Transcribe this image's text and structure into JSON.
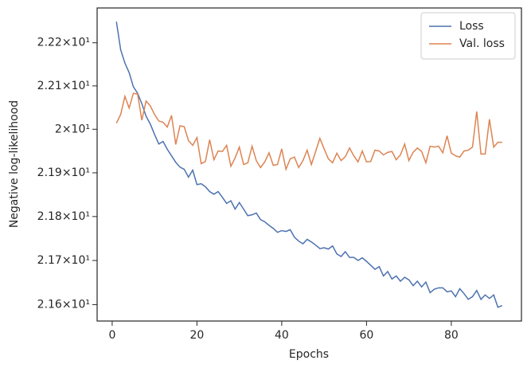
{
  "chart_data": {
    "type": "line",
    "xlabel": "Epochs",
    "ylabel": "Negative log-likelihood",
    "x": [
      1,
      2,
      3,
      4,
      5,
      6,
      7,
      8,
      9,
      10,
      11,
      12,
      13,
      14,
      15,
      16,
      17,
      18,
      19,
      20,
      21,
      22,
      23,
      24,
      25,
      26,
      27,
      28,
      29,
      30,
      31,
      32,
      33,
      34,
      35,
      36,
      37,
      38,
      39,
      40,
      41,
      42,
      43,
      44,
      45,
      46,
      47,
      48,
      49,
      50,
      51,
      52,
      53,
      54,
      55,
      56,
      57,
      58,
      59,
      60,
      61,
      62,
      63,
      64,
      65,
      66,
      67,
      68,
      69,
      70,
      71,
      72,
      73,
      74,
      75,
      76,
      77,
      78,
      79,
      80,
      81,
      82,
      83,
      84,
      85,
      86,
      87,
      88,
      89,
      90,
      91,
      92
    ],
    "series": [
      {
        "name": "Loss",
        "color": "#4c72b0",
        "values": [
          22.249,
          22.184,
          22.153,
          22.131,
          22.098,
          22.083,
          22.059,
          22.03,
          22.012,
          21.988,
          21.966,
          21.972,
          21.954,
          21.939,
          21.924,
          21.913,
          21.908,
          21.89,
          21.906,
          21.873,
          21.875,
          21.868,
          21.857,
          21.851,
          21.857,
          21.844,
          21.83,
          21.836,
          21.817,
          21.832,
          21.817,
          21.802,
          21.804,
          21.808,
          21.793,
          21.788,
          21.78,
          21.773,
          21.764,
          21.768,
          21.766,
          21.77,
          21.753,
          21.744,
          21.738,
          21.748,
          21.742,
          21.735,
          21.727,
          21.729,
          21.726,
          21.733,
          21.715,
          21.709,
          21.72,
          21.707,
          21.707,
          21.7,
          21.706,
          21.698,
          21.689,
          21.68,
          21.686,
          21.665,
          21.675,
          21.658,
          21.665,
          21.653,
          21.662,
          21.656,
          21.643,
          21.653,
          21.64,
          21.651,
          21.627,
          21.635,
          21.638,
          21.638,
          21.629,
          21.631,
          21.618,
          21.636,
          21.625,
          21.612,
          21.618,
          21.632,
          21.612,
          21.622,
          21.614,
          21.622,
          21.594,
          21.598
        ]
      },
      {
        "name": "Val. loss",
        "color": "#dd8452",
        "values": [
          22.014,
          22.034,
          22.076,
          22.049,
          22.083,
          22.081,
          22.021,
          22.065,
          22.054,
          22.034,
          22.019,
          22.016,
          22.005,
          22.032,
          21.965,
          22.008,
          22.006,
          21.974,
          21.963,
          21.981,
          21.921,
          21.926,
          21.976,
          21.93,
          21.95,
          21.949,
          21.963,
          21.915,
          21.934,
          21.959,
          21.919,
          21.923,
          21.961,
          21.928,
          21.912,
          21.925,
          21.946,
          21.917,
          21.919,
          21.955,
          21.908,
          21.932,
          21.936,
          21.912,
          21.928,
          21.952,
          21.919,
          21.949,
          21.979,
          21.955,
          21.932,
          21.923,
          21.945,
          21.928,
          21.937,
          21.957,
          21.939,
          21.925,
          21.95,
          21.925,
          21.926,
          21.952,
          21.95,
          21.941,
          21.947,
          21.949,
          21.93,
          21.941,
          21.966,
          21.928,
          21.947,
          21.957,
          21.949,
          21.923,
          21.961,
          21.959,
          21.961,
          21.946,
          21.985,
          21.945,
          21.939,
          21.936,
          21.95,
          21.952,
          21.959,
          22.041,
          21.943,
          21.943,
          22.023,
          21.959,
          21.97,
          21.97
        ]
      }
    ],
    "xlim": [
      -3.55,
      96.55
    ],
    "xticks": [
      0,
      20,
      40,
      60,
      80
    ],
    "ylim": [
      21.563,
      22.281
    ],
    "log_scale": true,
    "yticks": [
      {
        "value": 21.6,
        "label": "2.16×10¹"
      },
      {
        "value": 21.7,
        "label": "2.17×10¹"
      },
      {
        "value": 21.8,
        "label": "2.18×10¹"
      },
      {
        "value": 21.9,
        "label": "2.19×10¹"
      },
      {
        "value": 22.0,
        "label": "2×10¹"
      },
      {
        "value": 22.1,
        "label": "2.21×10¹"
      },
      {
        "value": 22.2,
        "label": "2.22×10¹"
      }
    ],
    "legend": "upper right",
    "grid": false
  }
}
